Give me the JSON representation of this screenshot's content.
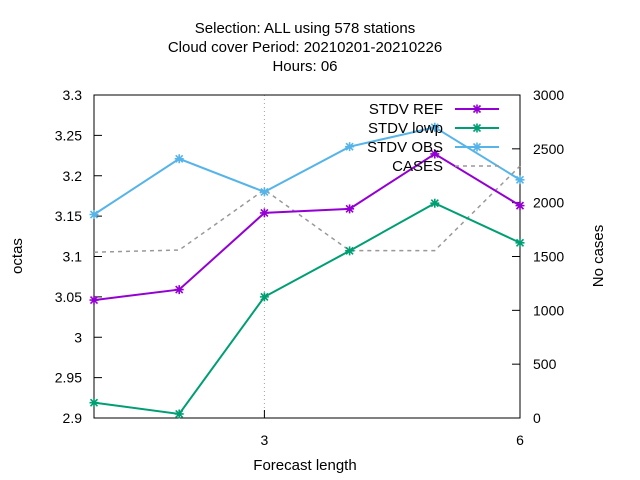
{
  "chart_data": {
    "type": "line",
    "title_lines": [
      "Selection: ALL using   578 stations",
      "Cloud cover   Period: 20210201-20210226",
      "Hours:  06"
    ],
    "xlabel": "Forecast length",
    "ylabel": "octas",
    "y2label": "No cases",
    "x": [
      1,
      2,
      3,
      4,
      5,
      6
    ],
    "xlim": [
      1,
      6
    ],
    "xticks": [
      3,
      6
    ],
    "ylim": [
      2.9,
      3.3
    ],
    "yticks": [
      "2.9",
      "2.95",
      "3",
      "3.05",
      "3.1",
      "3.15",
      "3.2",
      "3.25",
      "3.3"
    ],
    "y2lim": [
      0,
      3000
    ],
    "y2ticks": [
      "0",
      "500",
      "1000",
      "1500",
      "2000",
      "2500",
      "3000"
    ],
    "grid": "x at 3",
    "legend_position": "top-right",
    "series": [
      {
        "name": "STDV REF",
        "axis": "y1",
        "color": "#9400d3",
        "values": [
          3.046,
          3.059,
          3.154,
          3.159,
          3.227,
          3.163
        ]
      },
      {
        "name": "STDV lowp",
        "axis": "y1",
        "color": "#009e73",
        "values": [
          2.919,
          2.905,
          3.05,
          3.107,
          3.166,
          3.117
        ]
      },
      {
        "name": "STDV OBS",
        "axis": "y1",
        "color": "#56b4e9",
        "values": [
          3.152,
          3.221,
          3.18,
          3.236,
          3.26,
          3.195
        ]
      },
      {
        "name": "CASES",
        "axis": "y2",
        "color": "#999999",
        "dashed": true,
        "values": [
          1540,
          1560,
          2120,
          1555,
          1555,
          2340
        ]
      }
    ]
  }
}
